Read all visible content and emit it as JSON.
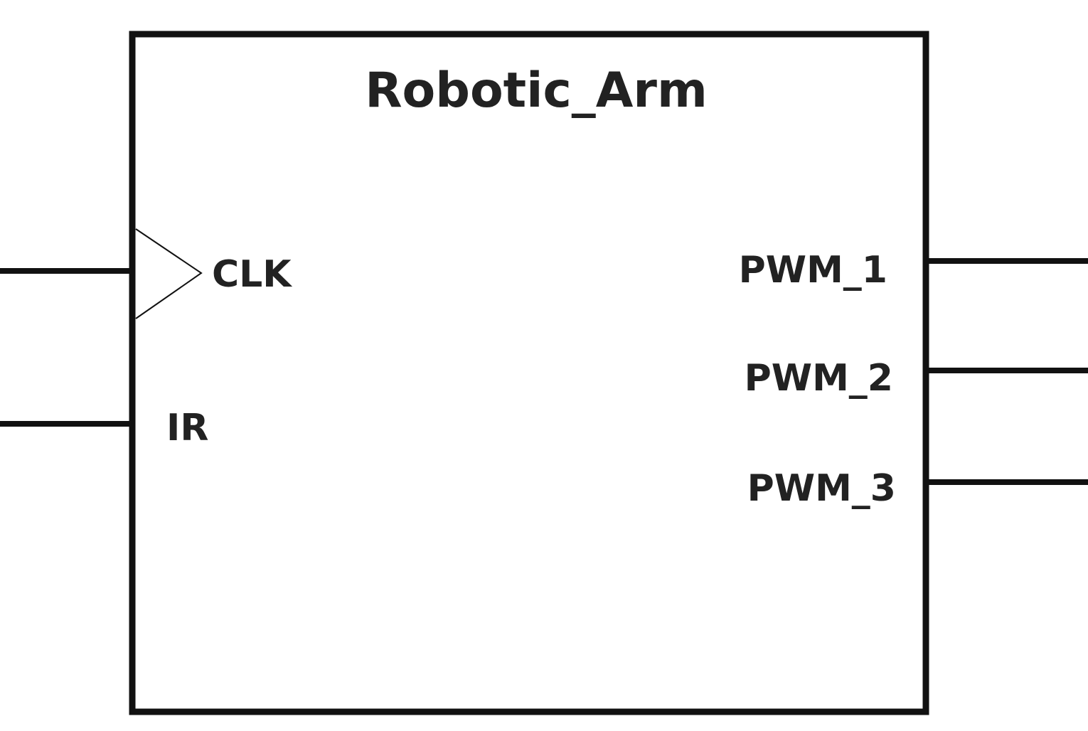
{
  "block": {
    "name": "Robotic_Arm"
  },
  "inputs": [
    {
      "label": "CLK",
      "clock": true
    },
    {
      "label": "IR",
      "clock": false
    }
  ],
  "outputs": [
    {
      "label": "PWM_1"
    },
    {
      "label": "PWM_2"
    },
    {
      "label": "PWM_3"
    }
  ]
}
